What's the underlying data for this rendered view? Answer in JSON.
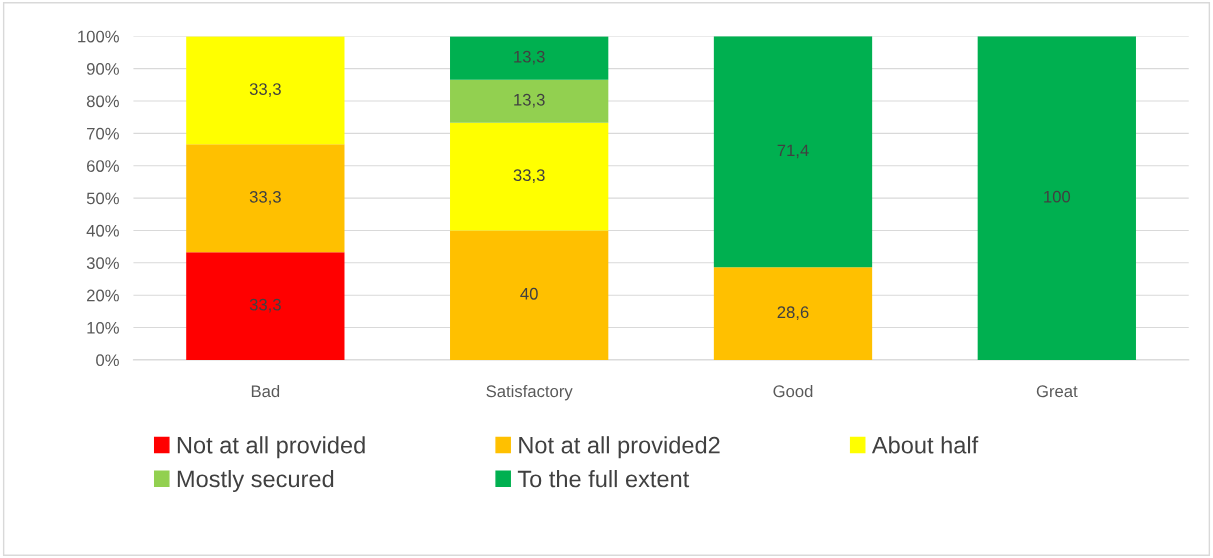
{
  "chart_data": {
    "type": "bar",
    "stacked": true,
    "categories": [
      "Bad",
      "Satisfactory",
      "Good",
      "Great"
    ],
    "series": [
      {
        "name": "Not at all provided",
        "color": "#ff0000",
        "values": [
          33.3,
          null,
          null,
          null
        ],
        "value_labels": [
          "33,3",
          null,
          null,
          null
        ]
      },
      {
        "name": "Not at all provided2",
        "color": "#ffc000",
        "values": [
          33.3,
          40,
          28.6,
          null
        ],
        "value_labels": [
          "33,3",
          "40",
          "28,6",
          null
        ]
      },
      {
        "name": "About half",
        "color": "#ffff00",
        "values": [
          33.3,
          33.3,
          null,
          null
        ],
        "value_labels": [
          "33,3",
          "33,3",
          null,
          null
        ]
      },
      {
        "name": "Mostly secured",
        "color": "#92d050",
        "values": [
          null,
          13.3,
          null,
          null
        ],
        "value_labels": [
          null,
          "13,3",
          null,
          null
        ]
      },
      {
        "name": "To the full extent",
        "color": "#00b050",
        "values": [
          null,
          13.3,
          71.4,
          100
        ],
        "value_labels": [
          null,
          "13,3",
          "71,4",
          "100"
        ]
      }
    ],
    "ylim": [
      0,
      100
    ],
    "yticks": [
      {
        "value": 0,
        "label": "0%"
      },
      {
        "value": 10,
        "label": "10%"
      },
      {
        "value": 20,
        "label": "20%"
      },
      {
        "value": 30,
        "label": "30%"
      },
      {
        "value": 40,
        "label": "40%"
      },
      {
        "value": 50,
        "label": "50%"
      },
      {
        "value": 60,
        "label": "60%"
      },
      {
        "value": 70,
        "label": "70%"
      },
      {
        "value": 80,
        "label": "80%"
      },
      {
        "value": 90,
        "label": "90%"
      },
      {
        "value": 100,
        "label": "100%"
      }
    ],
    "grid": "y",
    "legend": "bottom"
  }
}
